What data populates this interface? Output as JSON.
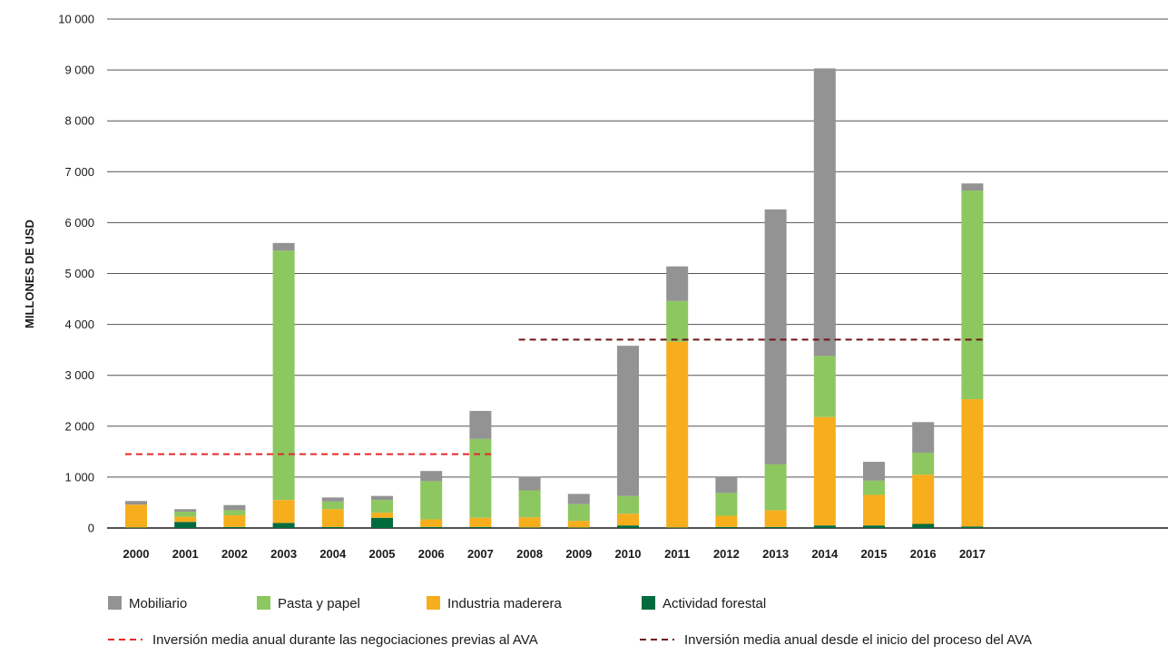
{
  "chart_data": {
    "type": "bar",
    "stacked": true,
    "ylabel": "MILLONES DE USD",
    "ylim": [
      0,
      10000
    ],
    "yticks": [
      0,
      1000,
      2000,
      3000,
      4000,
      5000,
      6000,
      7000,
      8000,
      9000,
      10000
    ],
    "ytick_labels": [
      "0",
      "1 000",
      "2 000",
      "3 000",
      "4 000",
      "5 000",
      "6 000",
      "7 000",
      "8 000",
      "9 000",
      "10 000"
    ],
    "grid": true,
    "categories": [
      "2000",
      "2001",
      "2002",
      "2003",
      "2004",
      "2005",
      "2006",
      "2007",
      "2008",
      "2009",
      "2010",
      "2011",
      "2012",
      "2013",
      "2014",
      "2015",
      "2016",
      "2017"
    ],
    "series": [
      {
        "name": "Actividad forestal",
        "color": "#006b3f",
        "values": [
          10,
          120,
          20,
          100,
          20,
          200,
          20,
          20,
          10,
          10,
          50,
          10,
          20,
          20,
          50,
          50,
          80,
          30
        ]
      },
      {
        "name": "Industria maderera",
        "color": "#f7ae1d",
        "values": [
          450,
          100,
          230,
          450,
          350,
          100,
          150,
          180,
          200,
          130,
          230,
          3650,
          220,
          330,
          2130,
          600,
          970,
          2500
        ]
      },
      {
        "name": "Pasta y papel",
        "color": "#8dc75f",
        "values": [
          0,
          100,
          100,
          4900,
          150,
          250,
          750,
          1550,
          530,
          330,
          350,
          800,
          450,
          900,
          1200,
          280,
          430,
          4100
        ]
      },
      {
        "name": "Mobiliario",
        "color": "#939393",
        "values": [
          70,
          50,
          100,
          150,
          80,
          80,
          200,
          550,
          270,
          200,
          2950,
          680,
          310,
          5010,
          5650,
          370,
          600,
          140
        ]
      }
    ],
    "reference_lines": [
      {
        "name": "Inversión media anual durante las negociaciones previas al AVA",
        "color": "#e4292a",
        "value": 1450,
        "x_start": "2000",
        "x_end": "2007"
      },
      {
        "name": "Inversión media anual desde el inicio del proceso del AVA",
        "color": "#6e1414",
        "value": 3700,
        "x_start": "2008",
        "x_end": "2017"
      }
    ],
    "legend_position": "bottom"
  }
}
